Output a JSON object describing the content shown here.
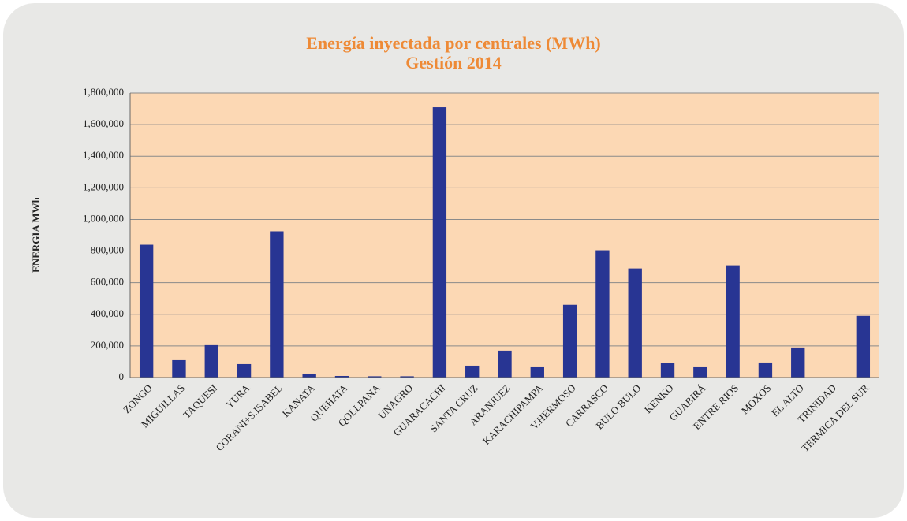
{
  "chart_data": {
    "type": "bar",
    "title": "Energía inyectada por centrales (MWh)",
    "subtitle": "Gestión 2014",
    "y_label": "ENERGIA MWh",
    "categories": [
      "ZONGO",
      "MIGUILLAS",
      "TAQUESI",
      "YURA",
      "CORANI+S.ISABEL",
      "KANATA",
      "QUEHATA",
      "QOLLPANA",
      "UNAGRO",
      "GUARACACHI",
      "SANTA CRUZ",
      "ARANJUEZ",
      "KARACHIPAMPA",
      "V.HERMOSO",
      "CARRASCO",
      "BULO BULO",
      "KENKO",
      "GUABIRÁ",
      "ENTRE RIOS",
      "MOXOS",
      "EL ALTO",
      "TRINIDAD",
      "TERMICA DEL SUR"
    ],
    "values": [
      840000,
      110000,
      205000,
      85000,
      925000,
      25000,
      10000,
      8000,
      8000,
      1710000,
      75000,
      170000,
      70000,
      460000,
      805000,
      690000,
      90000,
      70000,
      710000,
      95000,
      190000,
      2000,
      390000
    ],
    "color": "#283593",
    "ylim": [
      0,
      1800000
    ],
    "yticks": [
      0,
      {
        "value": 200000,
        "label": "200,000"
      },
      {
        "value": 400000,
        "label": "400,000"
      },
      {
        "value": 600000,
        "label": "600,000"
      },
      {
        "value": 800000,
        "label": "800,000"
      },
      {
        "value": 1000000,
        "label": "1,000,000"
      },
      {
        "value": 1200000,
        "label": "1,200,000"
      },
      {
        "value": 1400000,
        "label": "1,400,000"
      },
      {
        "value": 1600000,
        "label": "1,600,000"
      },
      {
        "value": 1800000,
        "label": "1,800,000"
      }
    ],
    "grid": true
  }
}
